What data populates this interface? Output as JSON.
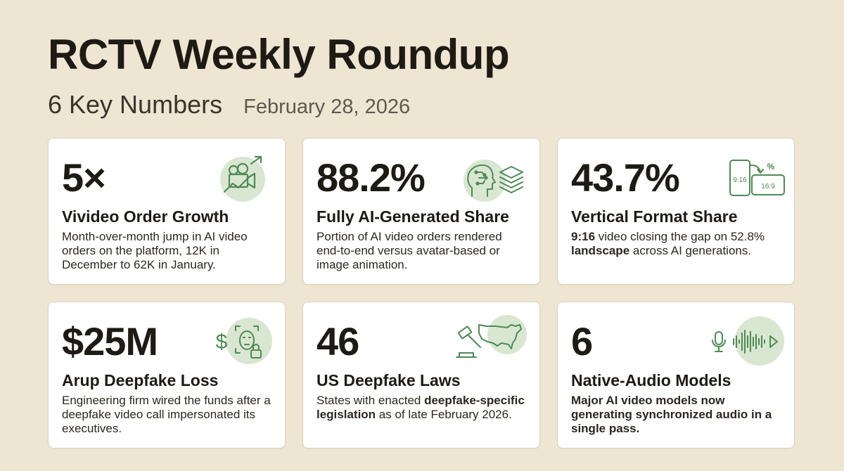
{
  "header": {
    "title": "RCTV Weekly Roundup",
    "subtitle": "6 Key Numbers",
    "date": "February 28, 2026"
  },
  "cards": [
    {
      "value": "5×",
      "label": "Vivideo Order Growth",
      "description": "Month-over-month jump in AI video orders on the platform, 12K in December to 62K in January.",
      "icon": "video-camera-growth-icon"
    },
    {
      "value": "88.2%",
      "label": "Fully AI-Generated Share",
      "description": "Portion of AI video orders rendered end-to-end versus avatar-based or image animation.",
      "icon": "ai-head-layers-icon"
    },
    {
      "value": "43.7%",
      "label": "Vertical Format Share",
      "description_parts": [
        "9:16",
        " video closing the gap on 52.8% ",
        "landscape",
        " across AI generations."
      ],
      "icon": "aspect-ratio-icon",
      "icon_text": {
        "portrait": "9:16",
        "landscape": "16:9",
        "percent": "%"
      }
    },
    {
      "value": "$25M",
      "label": "Arup Deepfake Loss",
      "description": "Engineering firm wired the funds after a deepfake video call impersonated its executives.",
      "icon": "deepfake-face-lock-icon",
      "icon_text": {
        "dollar": "$"
      }
    },
    {
      "value": "46",
      "label": "US Deepfake Laws",
      "description_parts": [
        "States with enacted ",
        "deepfake-specific legislation",
        " as of late February 2026."
      ],
      "icon": "gavel-us-map-icon"
    },
    {
      "value": "6",
      "label": "Native-Audio Models",
      "description": "Major AI video models now generating synchronized audio in a single pass.",
      "icon": "microphone-waveform-play-icon"
    }
  ],
  "colors": {
    "background": "#efe5d3",
    "card": "#ffffff",
    "accent_green": "#4e8a55",
    "icon_circle": "#d9e6d2",
    "text": "#1e1a14"
  }
}
